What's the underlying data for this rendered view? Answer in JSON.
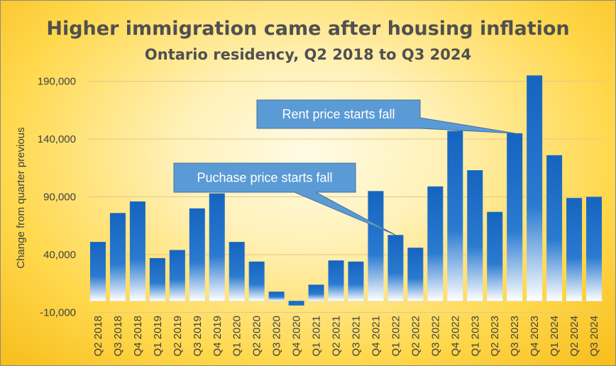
{
  "chart_data": {
    "type": "bar",
    "title": "Higher immigration came after housing inflation",
    "subtitle": "Ontario residency, Q2 2018 to Q3 2024",
    "xlabel": "",
    "ylabel": "Change from quarter previous",
    "ylim": [
      -10000,
      200000
    ],
    "yticks": [
      -10000,
      40000,
      90000,
      140000,
      190000
    ],
    "ytick_labels": [
      "-10,000",
      "40,000",
      "90,000",
      "140,000",
      "190,000"
    ],
    "grid": true,
    "categories": [
      "Q2 2018",
      "Q3 2018",
      "Q4 2018",
      "Q1 2019",
      "Q2 2019",
      "Q3 2019",
      "Q4 2019",
      "Q1 2020",
      "Q2 2020",
      "Q3 2020",
      "Q4 2020",
      "Q1 2021",
      "Q2 2021",
      "Q3 2021",
      "Q4 2021",
      "Q1 2022",
      "Q2 2022",
      "Q3 2022",
      "Q4 2022",
      "Q1 2023",
      "Q2 2023",
      "Q3 2023",
      "Q4 2023",
      "Q1 2024",
      "Q2 2024",
      "Q3 2024"
    ],
    "values": [
      51000,
      76000,
      86000,
      37000,
      44000,
      80000,
      93000,
      51000,
      34000,
      8000,
      -4000,
      14000,
      35000,
      34000,
      95000,
      57000,
      46000,
      99000,
      147000,
      113000,
      77000,
      145000,
      195000,
      126000,
      89000,
      90000
    ],
    "bar_color": "#1a6fc4",
    "annotations": [
      {
        "text": "Rent price starts fall",
        "category": "Q3 2023"
      },
      {
        "text": "Puchase price starts fall",
        "category": "Q1 2022"
      }
    ]
  }
}
